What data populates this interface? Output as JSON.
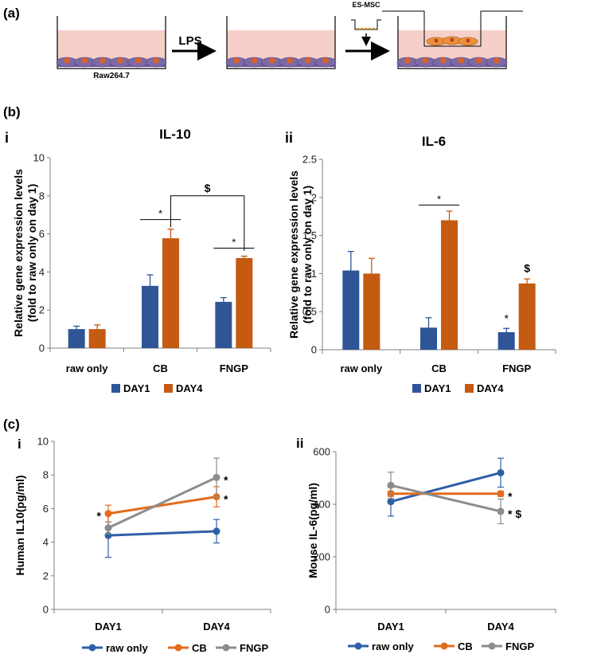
{
  "panels": {
    "a": "(a)",
    "b": "(b)",
    "c": "(c)",
    "b_i": "i",
    "b_ii": "ii",
    "c_i": "i",
    "c_ii": "ii"
  },
  "schematic": {
    "step1_label": "LPS",
    "cells_label": "Raw264.7",
    "insert_label": "ES-MSC"
  },
  "colors": {
    "day1": "#2f5597",
    "day4": "#c55a11",
    "raw_only": "#2e5fa8",
    "cb": "#e36c1d",
    "fngp": "#8c8c8c",
    "medium": "#f6cfc9",
    "cell": "#7b6aa6",
    "nucleus": "#d9622b"
  },
  "chart_data": [
    {
      "id": "b-i",
      "type": "bar",
      "title": "IL-10",
      "ylabel": [
        "Relative gene expression levels",
        "(fold to raw only on day 1)"
      ],
      "xlabel": "",
      "categories": [
        "raw only",
        "CB",
        "FNGP"
      ],
      "ylim": [
        0,
        10
      ],
      "yticks": [
        0,
        2,
        4,
        6,
        8,
        10
      ],
      "ytick_labels": [
        "0",
        "2",
        "4",
        "6",
        "8",
        "10"
      ],
      "series": [
        {
          "name": "DAY1",
          "values": [
            1.0,
            3.27,
            2.43
          ],
          "errors": [
            0.15,
            0.58,
            0.22
          ]
        },
        {
          "name": "DAY4",
          "values": [
            1.0,
            5.77,
            4.73
          ],
          "errors": [
            0.22,
            0.48,
            0.1
          ]
        }
      ],
      "annotations": [
        {
          "type": "line",
          "label": "*",
          "from": [
            1,
            0
          ],
          "to": [
            1,
            1
          ],
          "y": 6.75
        },
        {
          "type": "bracket",
          "label": "$",
          "from": [
            1,
            1
          ],
          "to": [
            2,
            1
          ],
          "y": 8.0,
          "drop_from": 6.35,
          "drop_to": 5.1
        },
        {
          "type": "line",
          "label": "*",
          "from": [
            2,
            0
          ],
          "to": [
            2,
            1
          ],
          "y": 5.25
        }
      ],
      "legend": [
        "DAY1",
        "DAY4"
      ],
      "legend_position": "bottom"
    },
    {
      "id": "b-ii",
      "type": "bar",
      "title": "IL-6",
      "ylabel": [
        "Relative gene expression levels",
        "(fold to raw only on day 1)"
      ],
      "xlabel": "",
      "categories": [
        "raw only",
        "CB",
        "FNGP"
      ],
      "ylim": [
        0,
        2.5
      ],
      "yticks": [
        0,
        0.5,
        1,
        1.5,
        2,
        2.5
      ],
      "ytick_labels": [
        "0",
        "0.5",
        "1",
        "1.5",
        "2",
        "2.5"
      ],
      "series": [
        {
          "name": "DAY1",
          "values": [
            1.04,
            0.29,
            0.23
          ],
          "errors": [
            0.25,
            0.13,
            0.05
          ]
        },
        {
          "name": "DAY4",
          "values": [
            1.0,
            1.7,
            0.87
          ],
          "errors": [
            0.2,
            0.12,
            0.06
          ]
        }
      ],
      "annotations": [
        {
          "type": "line",
          "label": "*",
          "from": [
            1,
            0
          ],
          "to": [
            1,
            1
          ],
          "y": 1.9
        },
        {
          "type": "label",
          "label": "*",
          "at": [
            2,
            0
          ],
          "y": 0.34
        },
        {
          "type": "label",
          "label": "$",
          "at": [
            2,
            1
          ],
          "y": 1.0
        }
      ],
      "legend": [
        "DAY1",
        "DAY4"
      ],
      "legend_position": "bottom"
    },
    {
      "id": "c-i",
      "type": "line",
      "title": "",
      "ylabel": "Human IL10(pg/ml)",
      "xlabel": "",
      "x": [
        "DAY1",
        "DAY4"
      ],
      "ylim": [
        0,
        10
      ],
      "yticks": [
        0,
        2,
        4,
        6,
        8,
        10
      ],
      "ytick_labels": [
        "0",
        "2",
        "4",
        "6",
        "8",
        "10"
      ],
      "series": [
        {
          "name": "raw only",
          "values": [
            4.4,
            4.65
          ],
          "errors": [
            1.3,
            0.7
          ]
        },
        {
          "name": "CB",
          "values": [
            5.7,
            6.7
          ],
          "errors": [
            0.5,
            0.6
          ]
        },
        {
          "name": "FNGP",
          "values": [
            4.85,
            7.85
          ],
          "errors": [
            0.35,
            1.15
          ]
        }
      ],
      "annotations": [
        {
          "label": "*",
          "series": "CB",
          "point": 0,
          "side": "left"
        },
        {
          "label": "*",
          "series": "FNGP",
          "point": 1,
          "side": "right"
        },
        {
          "label": "*",
          "series": "CB",
          "point": 1,
          "side": "right"
        }
      ],
      "legend": [
        "raw only",
        "CB",
        "FNGP"
      ],
      "legend_position": "bottom"
    },
    {
      "id": "c-ii",
      "type": "line",
      "title": "",
      "ylabel": "Mouse IL-6(pg/ml)",
      "xlabel": "",
      "x": [
        "DAY1",
        "DAY4"
      ],
      "ylim": [
        0,
        600
      ],
      "yticks": [
        0,
        200,
        400,
        600
      ],
      "ytick_labels": [
        "0",
        "200",
        "400",
        "600"
      ],
      "series": [
        {
          "name": "raw only",
          "values": [
            410,
            520
          ],
          "errors": [
            55,
            55
          ]
        },
        {
          "name": "CB",
          "values": [
            440,
            440
          ],
          "errors": [
            10,
            10
          ]
        },
        {
          "name": "FNGP",
          "values": [
            472,
            373
          ],
          "errors": [
            50,
            47
          ]
        }
      ],
      "annotations": [
        {
          "label": "*",
          "series": "CB",
          "point": 1,
          "side": "right"
        },
        {
          "label": "* $",
          "series": "FNGP",
          "point": 1,
          "side": "right"
        }
      ],
      "legend": [
        "raw only",
        "CB",
        "FNGP"
      ],
      "legend_position": "bottom"
    }
  ]
}
